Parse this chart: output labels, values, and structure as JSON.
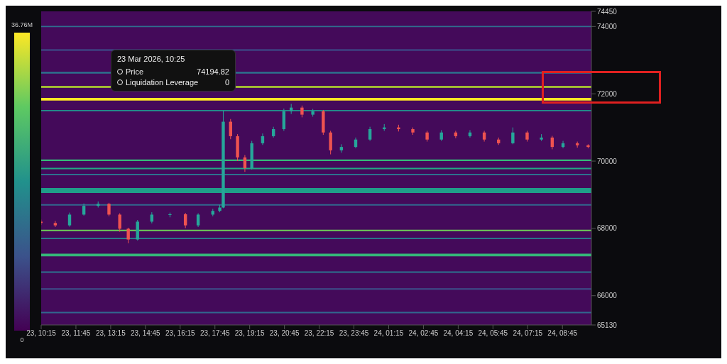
{
  "chart_data": {
    "type": "candlestick",
    "x": [
      "2026-03-23T10:15",
      "2026-03-23T10:52",
      "2026-03-23T11:29",
      "2026-03-23T12:06",
      "2026-03-23T12:43",
      "2026-03-23T13:11",
      "2026-03-23T13:39",
      "2026-03-23T14:01",
      "2026-03-23T14:25",
      "2026-03-23T15:02",
      "2026-03-23T15:49",
      "2026-03-23T16:29",
      "2026-03-23T17:02",
      "2026-03-23T17:40",
      "2026-03-23T17:58",
      "2026-03-23T18:07",
      "2026-03-23T18:26",
      "2026-03-23T18:44",
      "2026-03-23T19:03",
      "2026-03-23T19:21",
      "2026-03-23T19:49",
      "2026-03-23T20:17",
      "2026-03-23T20:44",
      "2026-03-23T21:03",
      "2026-03-23T21:31",
      "2026-03-23T21:59",
      "2026-03-23T22:26",
      "2026-03-23T22:45",
      "2026-03-23T23:13",
      "2026-03-23T23:50",
      "2026-03-24T00:27",
      "2026-03-24T01:04",
      "2026-03-24T01:41",
      "2026-03-24T02:18",
      "2026-03-24T02:55",
      "2026-03-24T03:32",
      "2026-03-24T04:09",
      "2026-03-24T04:46",
      "2026-03-24T05:23",
      "2026-03-24T06:00",
      "2026-03-24T06:37",
      "2026-03-24T07:14",
      "2026-03-24T07:51",
      "2026-03-24T08:19",
      "2026-03-24T08:47",
      "2026-03-24T09:24",
      "2026-03-24T09:52"
    ],
    "ohlc": [
      [
        68200,
        68260,
        68100,
        68160
      ],
      [
        68160,
        68220,
        68040,
        68090
      ],
      [
        68090,
        68470,
        68050,
        68410
      ],
      [
        68410,
        68740,
        68380,
        68670
      ],
      [
        68670,
        68800,
        68620,
        68730
      ],
      [
        68730,
        68760,
        68360,
        68410
      ],
      [
        68410,
        68450,
        67900,
        67990
      ],
      [
        67990,
        68020,
        67560,
        67670
      ],
      [
        67670,
        68250,
        67640,
        68200
      ],
      [
        68200,
        68480,
        68150,
        68410
      ],
      [
        68410,
        68470,
        68330,
        68420
      ],
      [
        68420,
        68460,
        68010,
        68090
      ],
      [
        68090,
        68450,
        68040,
        68410
      ],
      [
        68410,
        68580,
        68360,
        68520
      ],
      [
        68520,
        68700,
        68480,
        68620
      ],
      [
        68620,
        71500,
        68600,
        71170
      ],
      [
        71170,
        71250,
        70650,
        70740
      ],
      [
        70740,
        70800,
        70000,
        70110
      ],
      [
        70110,
        70180,
        69680,
        69790
      ],
      [
        69790,
        70600,
        69750,
        70530
      ],
      [
        70530,
        70820,
        70480,
        70740
      ],
      [
        70740,
        71020,
        70700,
        70950
      ],
      [
        70950,
        71560,
        70900,
        71480
      ],
      [
        71480,
        71700,
        71400,
        71590
      ],
      [
        71590,
        71650,
        71300,
        71380
      ],
      [
        71380,
        71550,
        71320,
        71480
      ],
      [
        71480,
        71520,
        70780,
        70850
      ],
      [
        70850,
        70900,
        70200,
        70320
      ],
      [
        70320,
        70500,
        70250,
        70420
      ],
      [
        70420,
        70700,
        70380,
        70640
      ],
      [
        70640,
        71020,
        70600,
        70950
      ],
      [
        70950,
        71100,
        70900,
        71000
      ],
      [
        71000,
        71080,
        70880,
        70950
      ],
      [
        70950,
        71000,
        70780,
        70850
      ],
      [
        70850,
        70900,
        70580,
        70640
      ],
      [
        70640,
        70920,
        70600,
        70850
      ],
      [
        70850,
        70900,
        70680,
        70740
      ],
      [
        70740,
        70920,
        70700,
        70850
      ],
      [
        70850,
        70900,
        70580,
        70640
      ],
      [
        70640,
        70700,
        70480,
        70530
      ],
      [
        70530,
        71000,
        70500,
        70850
      ],
      [
        70850,
        70900,
        70580,
        70640
      ],
      [
        70640,
        70800,
        70600,
        70700
      ],
      [
        70700,
        70750,
        70350,
        70420
      ],
      [
        70420,
        70600,
        70380,
        70530
      ],
      [
        70530,
        70580,
        70400,
        70470
      ],
      [
        70470,
        70500,
        70380,
        70420
      ]
    ],
    "xlim": [
      "2026-03-23T10:15",
      "2026-03-24T10:00"
    ],
    "xticks": [
      {
        "value": "2026-03-23T10:15",
        "label": "23, 10:15"
      },
      {
        "value": "2026-03-23T11:45",
        "label": "23, 11:45"
      },
      {
        "value": "2026-03-23T13:15",
        "label": "23, 13:15"
      },
      {
        "value": "2026-03-23T14:45",
        "label": "23, 14:45"
      },
      {
        "value": "2026-03-23T16:15",
        "label": "23, 16:15"
      },
      {
        "value": "2026-03-23T17:45",
        "label": "23, 17:45"
      },
      {
        "value": "2026-03-23T19:15",
        "label": "23, 19:15"
      },
      {
        "value": "2026-03-23T20:45",
        "label": "23, 20:45"
      },
      {
        "value": "2026-03-23T22:15",
        "label": "23, 22:15"
      },
      {
        "value": "2026-03-23T23:45",
        "label": "23, 23:45"
      },
      {
        "value": "2026-03-24T01:15",
        "label": "24, 01:15"
      },
      {
        "value": "2026-03-24T02:45",
        "label": "24, 02:45"
      },
      {
        "value": "2026-03-24T04:15",
        "label": "24, 04:15"
      },
      {
        "value": "2026-03-24T05:45",
        "label": "24, 05:45"
      },
      {
        "value": "2026-03-24T07:15",
        "label": "24, 07:15"
      },
      {
        "value": "2026-03-24T08:45",
        "label": "24, 08:45"
      }
    ],
    "ylim": [
      65130,
      74450
    ],
    "yticks": [
      65130,
      66000,
      68000,
      70000,
      72000,
      74000,
      74450
    ],
    "clim": [
      0,
      36.76
    ],
    "cticks": [
      {
        "value": 0,
        "label": "0"
      },
      {
        "value": 36.76,
        "label": "36.76M"
      }
    ],
    "bands": [
      {
        "axis": "y",
        "from": 73980,
        "to": 74020,
        "color": "#2f6f8e"
      },
      {
        "axis": "y",
        "from": 73280,
        "to": 73320,
        "color": "#3b528b"
      },
      {
        "axis": "y",
        "from": 72600,
        "to": 72650,
        "color": "#2c728e"
      },
      {
        "axis": "y",
        "from": 72180,
        "to": 72230,
        "color": "#b5de2b"
      },
      {
        "axis": "y",
        "from": 71800,
        "to": 71880,
        "color": "#fde725"
      },
      {
        "axis": "y",
        "from": 71480,
        "to": 71520,
        "color": "#21918c"
      },
      {
        "axis": "y",
        "from": 70000,
        "to": 70050,
        "color": "#35b779"
      },
      {
        "axis": "y",
        "from": 69760,
        "to": 69800,
        "color": "#22a884"
      },
      {
        "axis": "y",
        "from": 69580,
        "to": 69620,
        "color": "#2c728e"
      },
      {
        "axis": "y",
        "from": 69050,
        "to": 69200,
        "color": "#1f9e89"
      },
      {
        "axis": "y",
        "from": 68680,
        "to": 68720,
        "color": "#31688e"
      },
      {
        "axis": "y",
        "from": 67920,
        "to": 67960,
        "color": "#6ece58"
      },
      {
        "axis": "y",
        "from": 67680,
        "to": 67720,
        "color": "#26828e"
      },
      {
        "axis": "y",
        "from": 67170,
        "to": 67250,
        "color": "#35b779"
      },
      {
        "axis": "y",
        "from": 66680,
        "to": 66720,
        "color": "#2c728e"
      },
      {
        "axis": "y",
        "from": 66180,
        "to": 66220,
        "color": "#3b528b"
      },
      {
        "axis": "y",
        "from": 65480,
        "to": 65520,
        "color": "#31688e"
      }
    ],
    "annotations": [
      "23 Mar 2026, 10:25",
      "Price",
      "74194.82",
      "Liquidation Leverage",
      "0"
    ],
    "grid": false
  }
}
